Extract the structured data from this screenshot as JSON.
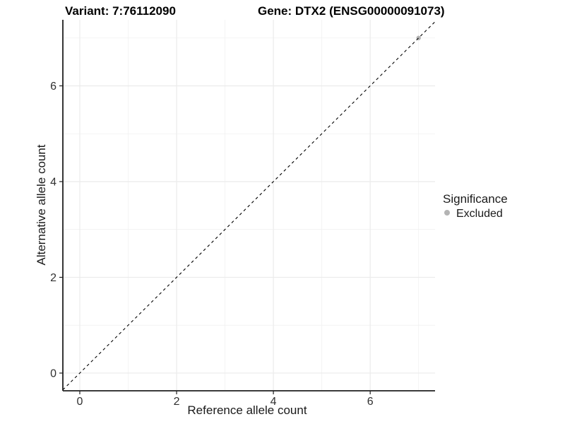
{
  "page": {
    "background": "#ffffff"
  },
  "chart_data": {
    "type": "scatter",
    "title_variant": "Variant: 7:76112090",
    "title_gene": "Gene: DTX2 (ENSG00000091073)",
    "xlabel": "Reference allele count",
    "ylabel": "Alternative allele count",
    "xlim": [
      -0.35,
      7.34
    ],
    "ylim": [
      -0.37,
      7.38
    ],
    "xticks": [
      0,
      2,
      4,
      6
    ],
    "yticks": [
      0,
      2,
      4,
      6
    ],
    "minor_xticks": [
      1,
      3,
      5,
      7
    ],
    "minor_yticks": [
      1,
      3,
      5,
      7
    ],
    "grid": "major+minor",
    "reference_line": {
      "slope": 1,
      "intercept": 0,
      "style": "dashed",
      "color": "#000000"
    },
    "series": [
      {
        "name": "Excluded",
        "color": "#b4b4b4",
        "point_radius": 3.2,
        "points": [
          {
            "x": 7,
            "y": 7
          }
        ]
      }
    ],
    "legend": {
      "title": "Significance",
      "position": "right",
      "entries": [
        {
          "label": "Excluded",
          "color": "#b4b4b4"
        }
      ]
    }
  },
  "colors": {
    "grid_major": "#ebebeb",
    "grid_minor": "#f1f1f1",
    "axis_line": "#1f1f1f",
    "tick_mark": "#1f1f1f",
    "tick_text": "#303030",
    "title_text": "#000000"
  }
}
